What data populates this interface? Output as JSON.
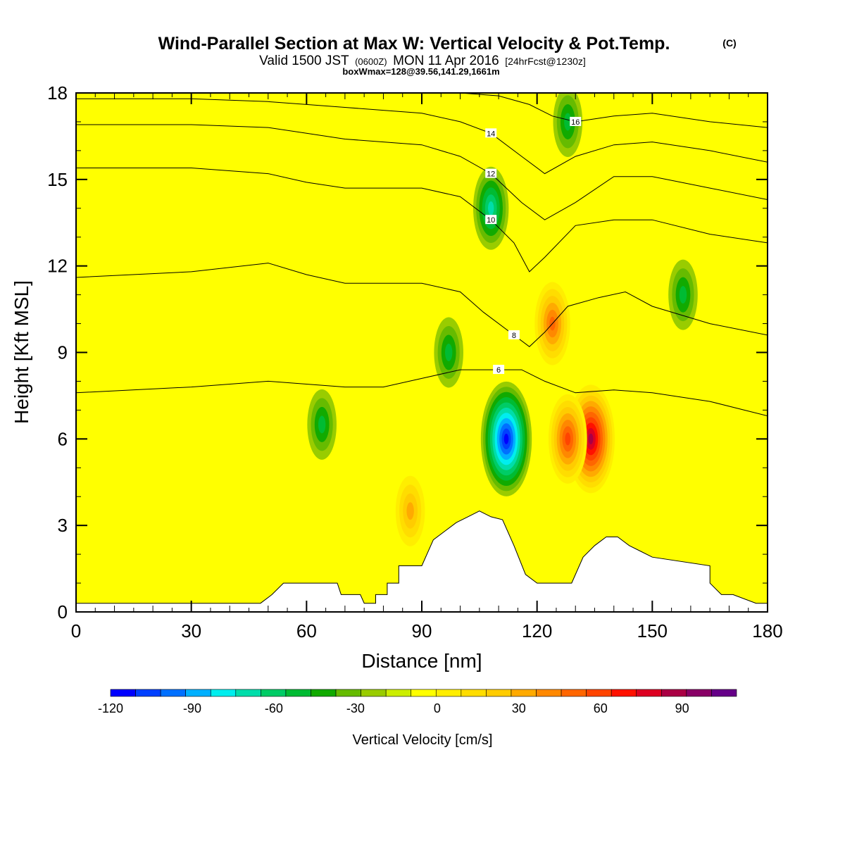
{
  "header": {
    "title_main": "Wind-Parallel Section at Max W: Vertical Velocity & Pot.Temp.",
    "title_copyright": "(C)",
    "subtitle_a": "Valid 1500 JST",
    "subtitle_b": "(0600Z)",
    "subtitle_c": "MON 11 Apr 2016",
    "subtitle_d": "[24hrFcst@1230z]",
    "boxline": "boxWmax=128@39.56,141.29,1661m"
  },
  "chart_data": {
    "type": "heatmap",
    "xlabel": "Distance [nm]",
    "ylabel": "Height [Kft MSL]",
    "xlim": [
      0,
      180
    ],
    "ylim": [
      0,
      18
    ],
    "x_ticks": [
      "0",
      "30",
      "60",
      "90",
      "120",
      "150",
      "180"
    ],
    "y_ticks": [
      "0",
      "3",
      "6",
      "9",
      "12",
      "15",
      "18"
    ],
    "colorbar": {
      "title": "Vertical Velocity [cm/s]",
      "range": [
        -120,
        110
      ],
      "step": 10,
      "tick_labels": [
        "-120",
        "-90",
        "-60",
        "-30",
        "0",
        "30",
        "60",
        "90"
      ],
      "colors": [
        "#0000ff",
        "#0040ff",
        "#0070ff",
        "#00b0ff",
        "#00eeee",
        "#00ddaa",
        "#00cc66",
        "#00bb33",
        "#11aa00",
        "#66bb00",
        "#99cc00",
        "#ccee00",
        "#ffff00",
        "#ffee00",
        "#ffdd00",
        "#ffcc00",
        "#ffaa00",
        "#ff8800",
        "#ff6600",
        "#ff4400",
        "#ff1100",
        "#dd0022",
        "#aa0044",
        "#880066",
        "#660088"
      ]
    },
    "terrain_profile": [
      [
        0,
        0.3
      ],
      [
        48,
        0.3
      ],
      [
        51,
        0.6
      ],
      [
        54,
        1.0
      ],
      [
        68,
        1.0
      ],
      [
        69,
        0.6
      ],
      [
        74,
        0.6
      ],
      [
        75,
        0.3
      ],
      [
        78,
        0.3
      ],
      [
        78,
        0.6
      ],
      [
        81,
        0.6
      ],
      [
        81,
        1.0
      ],
      [
        84,
        1.0
      ],
      [
        84,
        1.6
      ],
      [
        90,
        1.6
      ],
      [
        93,
        2.5
      ],
      [
        96,
        2.8
      ],
      [
        99,
        3.1
      ],
      [
        102,
        3.3
      ],
      [
        105,
        3.5
      ],
      [
        108,
        3.3
      ],
      [
        111,
        3.2
      ],
      [
        114,
        2.3
      ],
      [
        117,
        1.3
      ],
      [
        120,
        1.0
      ],
      [
        129,
        1.0
      ],
      [
        132,
        1.9
      ],
      [
        135,
        2.3
      ],
      [
        138,
        2.6
      ],
      [
        141,
        2.6
      ],
      [
        144,
        2.3
      ],
      [
        147,
        2.1
      ],
      [
        150,
        1.9
      ],
      [
        165,
        1.6
      ],
      [
        165,
        1.0
      ],
      [
        168,
        0.6
      ],
      [
        171,
        0.6
      ],
      [
        177,
        0.3
      ],
      [
        180,
        0.3
      ]
    ],
    "velocity_features": [
      {
        "x": 134,
        "y": 6.0,
        "peak": 100
      },
      {
        "x": 124,
        "y": 10.0,
        "peak": 60
      },
      {
        "x": 128,
        "y": 6.0,
        "peak": 70
      },
      {
        "x": 87,
        "y": 3.5,
        "peak": 45
      },
      {
        "x": 112,
        "y": 6.0,
        "peak": -110
      },
      {
        "x": 108,
        "y": 14.0,
        "peak": -60
      },
      {
        "x": 64,
        "y": 6.5,
        "peak": -45
      },
      {
        "x": 158,
        "y": 11.0,
        "peak": -45
      },
      {
        "x": 97,
        "y": 9.0,
        "peak": -40
      },
      {
        "x": 128,
        "y": 17.0,
        "peak": -40
      }
    ],
    "contour_lines": [
      {
        "label": "6",
        "points": [
          [
            0,
            7.6
          ],
          [
            30,
            7.8
          ],
          [
            50,
            8.0
          ],
          [
            60,
            7.9
          ],
          [
            70,
            7.8
          ],
          [
            80,
            7.8
          ],
          [
            90,
            8.1
          ],
          [
            100,
            8.4
          ],
          [
            110,
            8.4
          ],
          [
            116,
            8.4
          ],
          [
            122,
            8.0
          ],
          [
            130,
            7.6
          ],
          [
            140,
            7.7
          ],
          [
            150,
            7.6
          ],
          [
            165,
            7.3
          ],
          [
            180,
            6.8
          ]
        ]
      },
      {
        "label": "8",
        "points": [
          [
            0,
            11.6
          ],
          [
            30,
            11.8
          ],
          [
            50,
            12.1
          ],
          [
            60,
            11.7
          ],
          [
            70,
            11.4
          ],
          [
            80,
            11.4
          ],
          [
            90,
            11.4
          ],
          [
            100,
            11.1
          ],
          [
            106,
            10.4
          ],
          [
            114,
            9.6
          ],
          [
            118,
            9.2
          ],
          [
            122,
            9.7
          ],
          [
            128,
            10.6
          ],
          [
            136,
            10.9
          ],
          [
            143,
            11.1
          ],
          [
            150,
            10.6
          ],
          [
            165,
            10.0
          ],
          [
            180,
            9.6
          ]
        ]
      },
      {
        "label": "10",
        "points": [
          [
            0,
            15.4
          ],
          [
            30,
            15.4
          ],
          [
            50,
            15.2
          ],
          [
            60,
            14.9
          ],
          [
            70,
            14.7
          ],
          [
            80,
            14.7
          ],
          [
            90,
            14.7
          ],
          [
            100,
            14.4
          ],
          [
            108,
            13.6
          ],
          [
            114,
            12.8
          ],
          [
            118,
            11.8
          ],
          [
            122,
            12.3
          ],
          [
            130,
            13.4
          ],
          [
            140,
            13.6
          ],
          [
            150,
            13.6
          ],
          [
            165,
            13.1
          ],
          [
            180,
            12.8
          ]
        ]
      },
      {
        "label": "12",
        "points": [
          [
            0,
            16.9
          ],
          [
            30,
            16.9
          ],
          [
            50,
            16.8
          ],
          [
            60,
            16.6
          ],
          [
            70,
            16.4
          ],
          [
            80,
            16.3
          ],
          [
            90,
            16.2
          ],
          [
            100,
            15.8
          ],
          [
            108,
            15.2
          ],
          [
            116,
            14.2
          ],
          [
            122,
            13.6
          ],
          [
            130,
            14.2
          ],
          [
            140,
            15.1
          ],
          [
            150,
            15.1
          ],
          [
            165,
            14.7
          ],
          [
            180,
            14.3
          ]
        ]
      },
      {
        "label": "14",
        "points": [
          [
            0,
            17.8
          ],
          [
            30,
            17.8
          ],
          [
            50,
            17.7
          ],
          [
            60,
            17.6
          ],
          [
            70,
            17.5
          ],
          [
            80,
            17.4
          ],
          [
            90,
            17.3
          ],
          [
            100,
            17.0
          ],
          [
            108,
            16.6
          ],
          [
            116,
            15.8
          ],
          [
            122,
            15.2
          ],
          [
            130,
            15.8
          ],
          [
            140,
            16.2
          ],
          [
            150,
            16.3
          ],
          [
            165,
            16.0
          ],
          [
            180,
            15.6
          ]
        ]
      },
      {
        "label": "16",
        "points": [
          [
            100,
            18.0
          ],
          [
            110,
            17.9
          ],
          [
            118,
            17.6
          ],
          [
            124,
            17.2
          ],
          [
            130,
            17.0
          ],
          [
            140,
            17.2
          ],
          [
            150,
            17.3
          ],
          [
            165,
            17.0
          ],
          [
            180,
            16.8
          ]
        ]
      }
    ]
  }
}
